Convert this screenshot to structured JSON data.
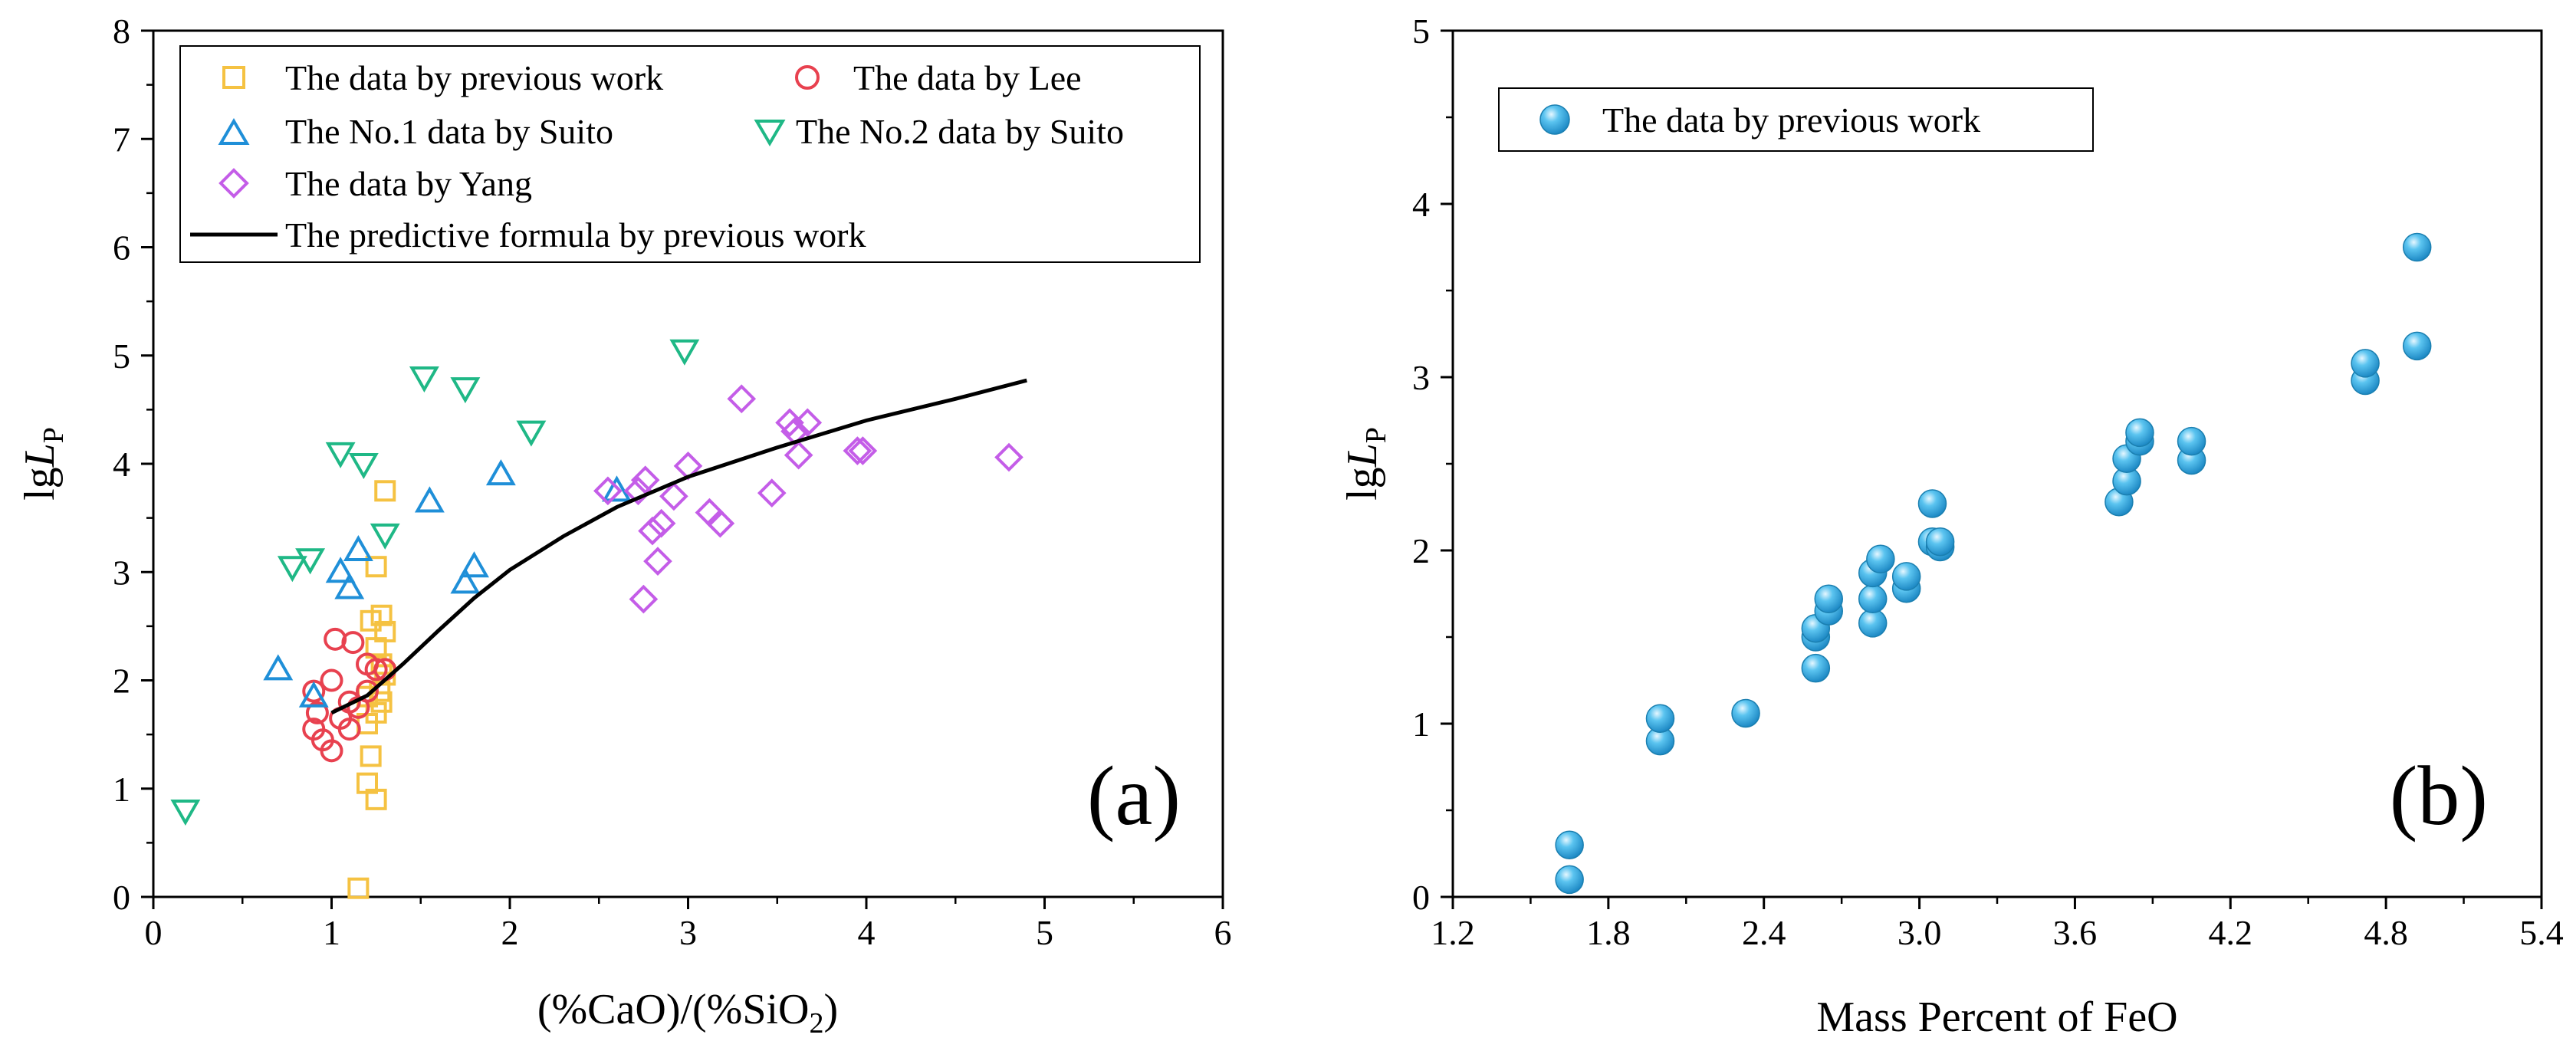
{
  "chart_data": [
    {
      "type": "scatter",
      "panel_label": "(a)",
      "xlabel": "(%CaO)/(%SiO2)",
      "ylabel": "lgLP",
      "xlim": [
        0,
        6
      ],
      "ylim": [
        0,
        8
      ],
      "xticks": [
        0,
        1,
        2,
        3,
        4,
        5,
        6
      ],
      "yticks": [
        0,
        1,
        2,
        3,
        4,
        5,
        6,
        7,
        8
      ],
      "grid": false,
      "legend_position": "top",
      "series": [
        {
          "name": "The data by previous work",
          "marker": "square",
          "color": "#F5C242",
          "points": [
            [
              1.15,
              0.08
            ],
            [
              1.2,
              1.05
            ],
            [
              1.25,
              0.9
            ],
            [
              1.22,
              1.3
            ],
            [
              1.2,
              1.6
            ],
            [
              1.25,
              1.7
            ],
            [
              1.28,
              1.8
            ],
            [
              1.2,
              1.85
            ],
            [
              1.27,
              1.9
            ],
            [
              1.3,
              2.05
            ],
            [
              1.28,
              2.15
            ],
            [
              1.25,
              2.3
            ],
            [
              1.3,
              2.45
            ],
            [
              1.22,
              2.55
            ],
            [
              1.28,
              2.6
            ],
            [
              1.25,
              3.05
            ],
            [
              1.3,
              3.75
            ]
          ]
        },
        {
          "name": "The data by Lee",
          "marker": "circle",
          "color": "#E8414F",
          "points": [
            [
              0.9,
              1.9
            ],
            [
              0.92,
              1.7
            ],
            [
              0.9,
              1.55
            ],
            [
              0.95,
              1.45
            ],
            [
              1.0,
              1.35
            ],
            [
              1.0,
              2.0
            ],
            [
              1.05,
              1.65
            ],
            [
              1.1,
              1.55
            ],
            [
              1.1,
              1.8
            ],
            [
              1.15,
              1.75
            ],
            [
              1.2,
              1.9
            ],
            [
              1.2,
              2.15
            ],
            [
              1.25,
              2.1
            ],
            [
              1.3,
              2.1
            ],
            [
              1.12,
              2.35
            ],
            [
              1.02,
              2.38
            ]
          ]
        },
        {
          "name": "The No.1 data by Suito",
          "marker": "triangle-up",
          "color": "#1F8FD8",
          "points": [
            [
              0.7,
              2.1
            ],
            [
              0.9,
              1.85
            ],
            [
              1.05,
              3.0
            ],
            [
              1.1,
              2.85
            ],
            [
              1.15,
              3.2
            ],
            [
              1.55,
              3.65
            ],
            [
              1.75,
              2.9
            ],
            [
              1.8,
              3.05
            ],
            [
              1.95,
              3.9
            ],
            [
              2.6,
              3.75
            ]
          ]
        },
        {
          "name": "The No.2 data by Suito",
          "marker": "triangle-down",
          "color": "#1FB886",
          "points": [
            [
              0.18,
              0.8
            ],
            [
              0.78,
              3.05
            ],
            [
              0.88,
              3.12
            ],
            [
              1.05,
              4.1
            ],
            [
              1.18,
              4.0
            ],
            [
              1.3,
              3.35
            ],
            [
              1.52,
              4.8
            ],
            [
              1.75,
              4.7
            ],
            [
              2.12,
              4.3
            ],
            [
              2.98,
              5.05
            ]
          ]
        },
        {
          "name": "The data by Yang",
          "marker": "diamond",
          "color": "#C45DE8",
          "points": [
            [
              2.55,
              3.75
            ],
            [
              2.72,
              3.75
            ],
            [
              2.76,
              3.85
            ],
            [
              2.75,
              2.75
            ],
            [
              2.8,
              3.38
            ],
            [
              2.85,
              3.45
            ],
            [
              2.83,
              3.1
            ],
            [
              2.92,
              3.7
            ],
            [
              3.0,
              3.98
            ],
            [
              3.12,
              3.55
            ],
            [
              3.18,
              3.45
            ],
            [
              3.3,
              4.6
            ],
            [
              3.47,
              3.73
            ],
            [
              3.57,
              4.38
            ],
            [
              3.6,
              4.3
            ],
            [
              3.62,
              4.08
            ],
            [
              3.67,
              4.38
            ],
            [
              3.95,
              4.12
            ],
            [
              3.98,
              4.12
            ],
            [
              4.8,
              4.06
            ]
          ]
        },
        {
          "name": "The predictive formula by previous work",
          "marker": "line",
          "color": "#000000",
          "points": [
            [
              1.0,
              1.7
            ],
            [
              1.2,
              1.86
            ],
            [
              1.4,
              2.15
            ],
            [
              1.6,
              2.46
            ],
            [
              1.8,
              2.76
            ],
            [
              2.0,
              3.02
            ],
            [
              2.3,
              3.33
            ],
            [
              2.6,
              3.6
            ],
            [
              3.0,
              3.88
            ],
            [
              3.5,
              4.15
            ],
            [
              4.0,
              4.4
            ],
            [
              4.5,
              4.6
            ],
            [
              4.9,
              4.77
            ]
          ]
        }
      ]
    },
    {
      "type": "scatter",
      "panel_label": "(b)",
      "xlabel": "Mass Percent of FeO",
      "ylabel": "lgLP",
      "xlim": [
        1.2,
        5.4
      ],
      "ylim": [
        0,
        5
      ],
      "xticks": [
        "1.2",
        "1.8",
        "2.4",
        "3.0",
        "3.6",
        "4.2",
        "4.8",
        "5.4"
      ],
      "yticks": [
        0,
        1,
        2,
        3,
        4,
        5
      ],
      "grid": false,
      "legend_position": "top-left",
      "series": [
        {
          "name": "The data by previous work",
          "marker": "ball",
          "color": "#2AA8E0",
          "points": [
            [
              1.65,
              0.1
            ],
            [
              1.65,
              0.3
            ],
            [
              2.0,
              0.9
            ],
            [
              2.0,
              1.03
            ],
            [
              2.33,
              1.06
            ],
            [
              2.6,
              1.32
            ],
            [
              2.6,
              1.5
            ],
            [
              2.6,
              1.55
            ],
            [
              2.65,
              1.65
            ],
            [
              2.65,
              1.72
            ],
            [
              2.82,
              1.58
            ],
            [
              2.82,
              1.72
            ],
            [
              2.82,
              1.87
            ],
            [
              2.85,
              1.95
            ],
            [
              2.95,
              1.78
            ],
            [
              2.95,
              1.85
            ],
            [
              3.05,
              2.05
            ],
            [
              3.08,
              2.02
            ],
            [
              3.08,
              2.05
            ],
            [
              3.05,
              2.27
            ],
            [
              3.77,
              2.28
            ],
            [
              3.8,
              2.4
            ],
            [
              3.8,
              2.53
            ],
            [
              3.85,
              2.63
            ],
            [
              3.85,
              2.68
            ],
            [
              4.05,
              2.52
            ],
            [
              4.05,
              2.63
            ],
            [
              4.72,
              2.98
            ],
            [
              4.72,
              3.08
            ],
            [
              4.92,
              3.18
            ],
            [
              4.92,
              3.75
            ]
          ]
        }
      ]
    }
  ]
}
